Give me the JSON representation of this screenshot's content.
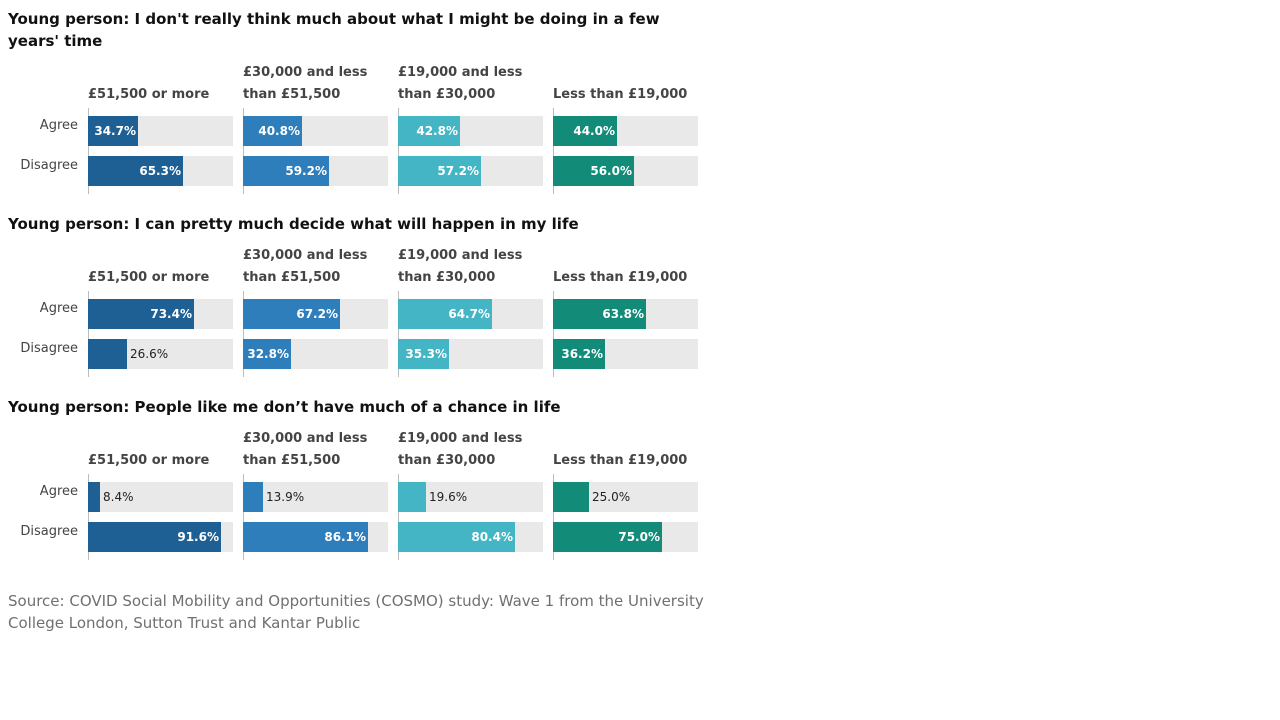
{
  "colors": {
    "band1": "#1f6094",
    "band2": "#2e7ebc",
    "band3": "#43b5c4",
    "band4": "#128b78",
    "track": "#e9e9e9"
  },
  "chart_data": {
    "type": "bar",
    "categories": [
      "£51,500 or more",
      "£30,000 and less than £51,500",
      "£19,000 and less than £30,000",
      "Less than £19,000"
    ],
    "category_lines": [
      [
        "£51,500 or more"
      ],
      [
        "£30,000 and less",
        "than £51,500"
      ],
      [
        "£19,000 and less",
        "than £30,000"
      ],
      [
        "Less than £19,000"
      ]
    ],
    "rows": [
      "Agree",
      "Disagree"
    ],
    "xlim": [
      0,
      100
    ],
    "unit": "%",
    "panels": [
      {
        "title": "Young person: I don't really think much about what I might be doing in a few years' time",
        "values": [
          [
            34.7,
            65.3
          ],
          [
            40.8,
            59.2
          ],
          [
            42.8,
            57.2
          ],
          [
            44.0,
            56.0
          ]
        ]
      },
      {
        "title": "Young person: I can pretty much decide what will happen in my life",
        "values": [
          [
            73.4,
            26.6
          ],
          [
            67.2,
            32.8
          ],
          [
            64.7,
            35.3
          ],
          [
            63.8,
            36.2
          ]
        ]
      },
      {
        "title": "Young person: People like me don’t have much of a chance in life",
        "values": [
          [
            8.4,
            91.6
          ],
          [
            13.9,
            86.1
          ],
          [
            19.6,
            80.4
          ],
          [
            25.0,
            75.0
          ]
        ]
      }
    ]
  },
  "source": "Source: COVID Social Mobility and Opportunities (COSMO) study: Wave 1 from the University College London, Sutton Trust and Kantar Public"
}
